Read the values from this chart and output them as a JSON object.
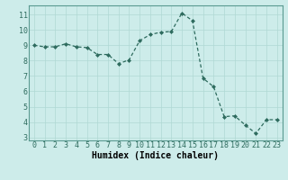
{
  "x": [
    0,
    1,
    2,
    3,
    4,
    5,
    6,
    7,
    8,
    9,
    10,
    11,
    12,
    13,
    14,
    15,
    16,
    17,
    18,
    19,
    20,
    21,
    22,
    23
  ],
  "y": [
    9.0,
    8.9,
    8.9,
    9.1,
    8.9,
    8.85,
    8.4,
    8.4,
    7.8,
    8.05,
    9.3,
    9.7,
    9.85,
    9.9,
    11.1,
    10.6,
    6.85,
    6.3,
    4.35,
    4.4,
    3.8,
    3.25,
    4.15,
    4.15
  ],
  "line_color": "#2e6b5e",
  "marker": "D",
  "markersize": 2.0,
  "linewidth": 0.9,
  "bg_color": "#cdecea",
  "grid_color": "#afd8d4",
  "xlabel": "Humidex (Indice chaleur)",
  "xlabel_fontsize": 7,
  "tick_fontsize": 6,
  "xlim": [
    -0.5,
    23.5
  ],
  "ylim": [
    2.8,
    11.6
  ],
  "yticks": [
    3,
    4,
    5,
    6,
    7,
    8,
    9,
    10,
    11
  ],
  "xticks": [
    0,
    1,
    2,
    3,
    4,
    5,
    6,
    7,
    8,
    9,
    10,
    11,
    12,
    13,
    14,
    15,
    16,
    17,
    18,
    19,
    20,
    21,
    22,
    23
  ],
  "figsize": [
    3.2,
    2.0
  ],
  "dpi": 100
}
